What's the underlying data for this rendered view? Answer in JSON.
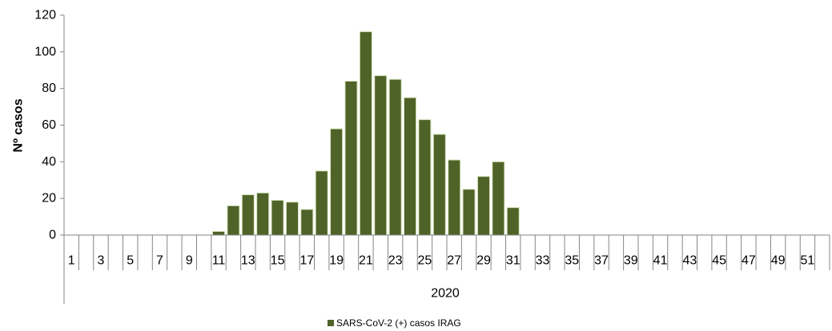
{
  "chart_data": {
    "type": "bar",
    "ylabel": "Nº casos",
    "xlabel": "",
    "group_label": "2020",
    "ylim": [
      0,
      120
    ],
    "yticks": [
      0,
      20,
      40,
      60,
      80,
      100,
      120
    ],
    "x_tick_labels": [
      "1",
      "3",
      "5",
      "7",
      "9",
      "11",
      "13",
      "15",
      "17",
      "19",
      "21",
      "23",
      "25",
      "27",
      "29",
      "31",
      "33",
      "35",
      "37",
      "39",
      "41",
      "43",
      "45",
      "47",
      "49",
      "51"
    ],
    "categories": [
      1,
      2,
      3,
      4,
      5,
      6,
      7,
      8,
      9,
      10,
      11,
      12,
      13,
      14,
      15,
      16,
      17,
      18,
      19,
      20,
      21,
      22,
      23,
      24,
      25,
      26,
      27,
      28,
      29,
      30,
      31,
      32,
      33,
      34,
      35,
      36,
      37,
      38,
      39,
      40,
      41,
      42,
      43,
      44,
      45,
      46,
      47,
      48,
      49,
      50,
      51,
      52
    ],
    "series": [
      {
        "name": "SARS-CoV-2 (+) casos IRAG",
        "color": "#4f6228",
        "values": [
          0,
          0,
          0,
          0,
          0,
          0,
          0,
          0,
          0,
          0,
          2,
          16,
          22,
          23,
          19,
          18,
          14,
          35,
          58,
          84,
          111,
          87,
          85,
          75,
          63,
          55,
          41,
          25,
          32,
          40,
          15,
          0,
          0,
          0,
          0,
          0,
          0,
          0,
          0,
          0,
          0,
          0,
          0,
          0,
          0,
          0,
          0,
          0,
          0,
          0,
          0,
          0
        ]
      }
    ],
    "grid": false,
    "legend": "bottom"
  }
}
